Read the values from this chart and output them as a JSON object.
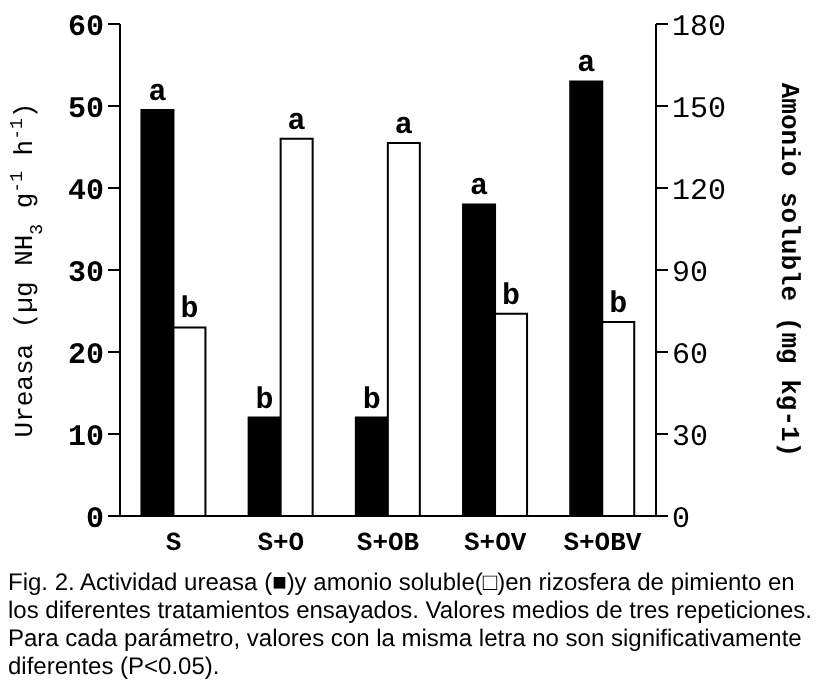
{
  "chart_data": {
    "type": "bar",
    "categories": [
      "S",
      "S+O",
      "S+OB",
      "S+OV",
      "S+OBV"
    ],
    "ylabel": "Ureasa (µg NH$_{3}$ g$^{-1}$ h$^{-1}$)",
    "y2label": "Amonio soluble (mg kg-1)",
    "ylim": [
      0,
      60
    ],
    "yticks": [
      0,
      10,
      20,
      30,
      40,
      50,
      60
    ],
    "y2lim": [
      0,
      180
    ],
    "y2ticks": [
      0,
      30,
      60,
      90,
      120,
      150,
      180
    ],
    "series": [
      {
        "color": "#000000",
        "values": [
          49.5,
          12,
          12,
          38,
          53
        ],
        "value_labels": [
          "a",
          "b",
          "b",
          "a",
          "a"
        ]
      },
      {
        "color": "#ffffff",
        "axis": "y2",
        "values": [
          69,
          138,
          136.5,
          74,
          71
        ],
        "value_labels": [
          "b",
          "a",
          "a",
          "b",
          "b"
        ]
      }
    ],
    "grid": false,
    "legend": false,
    "annotations": [
      "Fig. 2. Actividad ureasa (■)y amonio soluble(□)en rizosfera de pimiento en los diferentes tratamientos ensayados. Valores medios de tres repeticiones. Para cada parámetro, valores con la misma letra no son significativamente diferentes (P<0.05)."
    ]
  }
}
